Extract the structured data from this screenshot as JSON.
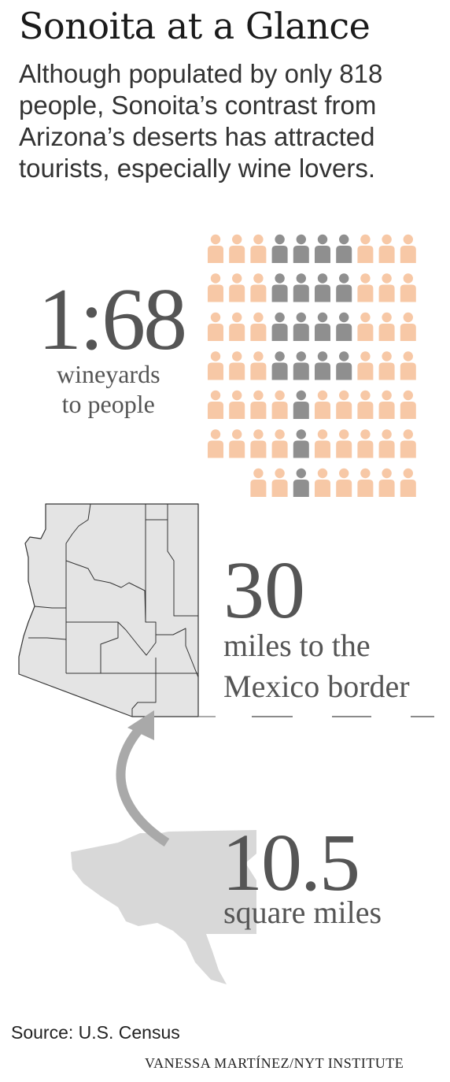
{
  "header": {
    "title": "Sonoita at a Glance",
    "intro_lines": [
      "Although populated by only 818",
      "people, Sonoita’s contrast from",
      "Arizona’s deserts has attracted",
      "tourists, especially wine lovers."
    ]
  },
  "stats": {
    "ratio": {
      "value": "1:68",
      "label_lines": [
        "wineyards",
        "to people"
      ]
    },
    "border": {
      "value": "30",
      "label_lines": [
        "miles to the",
        "Mexico border"
      ]
    },
    "area": {
      "value": "10.5",
      "label": "square miles"
    }
  },
  "footer": {
    "source": "Source: U.S. Census",
    "credit": "VANESSA MARTÍNEZ/NYT INSTITUTE"
  },
  "colors": {
    "person_peach": "#f7c8a6",
    "person_gray": "#8f8f8f",
    "map_fill": "#e4e4e4",
    "town_fill": "#d8d8d8",
    "arrow": "#a9a9a9",
    "text": "#555555"
  },
  "icons": {
    "person": "person-icon",
    "arrow": "curved-arrow-icon",
    "map": "arizona-county-map",
    "town": "sonoita-outline"
  }
}
